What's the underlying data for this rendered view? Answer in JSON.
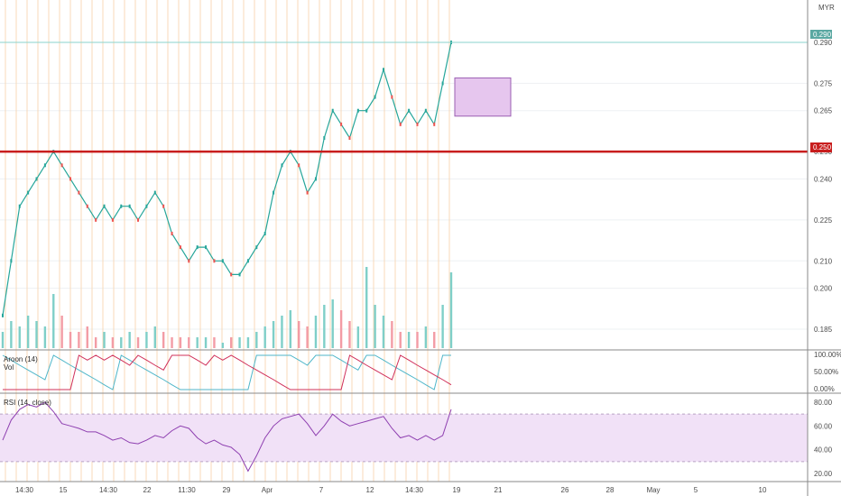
{
  "chart_data": {
    "type": "line",
    "title": "",
    "currency": "MYR",
    "grid": true,
    "x_ticks": [
      "14:30",
      "15",
      "14:30",
      "22",
      "11:30",
      "29",
      "Apr",
      "7",
      "12",
      "14:30",
      "19",
      "21",
      "26",
      "28",
      "May",
      "5",
      "10"
    ],
    "price_panel": {
      "y_ticks": [
        "0.290",
        "0.275",
        "0.265",
        "0.250",
        "0.240",
        "0.225",
        "0.210",
        "0.200",
        "0.185"
      ],
      "last_price_label": "0.290",
      "horizontal_level_label": "0.250",
      "last_price": 0.29,
      "horizontal_level": 0.25,
      "price": [
        0.19,
        0.21,
        0.23,
        0.235,
        0.24,
        0.245,
        0.25,
        0.245,
        0.24,
        0.235,
        0.23,
        0.225,
        0.23,
        0.225,
        0.23,
        0.23,
        0.225,
        0.23,
        0.235,
        0.23,
        0.22,
        0.215,
        0.21,
        0.215,
        0.215,
        0.21,
        0.21,
        0.205,
        0.205,
        0.21,
        0.215,
        0.22,
        0.235,
        0.245,
        0.25,
        0.245,
        0.235,
        0.24,
        0.255,
        0.265,
        0.26,
        0.255,
        0.265,
        0.265,
        0.27,
        0.28,
        0.27,
        0.26,
        0.265,
        0.26,
        0.265,
        0.26,
        0.275,
        0.29
      ],
      "volume": [
        0.3,
        0.5,
        0.4,
        0.6,
        0.5,
        0.4,
        1.0,
        0.6,
        0.3,
        0.3,
        0.4,
        0.2,
        0.3,
        0.2,
        0.2,
        0.3,
        0.2,
        0.3,
        0.4,
        0.3,
        0.2,
        0.2,
        0.2,
        0.2,
        0.2,
        0.2,
        0.1,
        0.2,
        0.2,
        0.2,
        0.3,
        0.4,
        0.5,
        0.6,
        0.7,
        0.5,
        0.4,
        0.6,
        0.8,
        0.9,
        0.7,
        0.5,
        0.4,
        1.5,
        0.8,
        0.6,
        0.5,
        0.3,
        0.3,
        0.3,
        0.4,
        0.3,
        0.8,
        1.4
      ]
    },
    "aroon_panel": {
      "label": "Aroon (14)",
      "sub_label": "Vol",
      "y_ticks": [
        "100.00%",
        "50.00%",
        "0.00%"
      ],
      "aroon_up": [
        100,
        86,
        71,
        57,
        43,
        29,
        100,
        86,
        71,
        57,
        43,
        29,
        14,
        0,
        100,
        86,
        71,
        57,
        43,
        29,
        14,
        0,
        0,
        0,
        0,
        0,
        0,
        0,
        0,
        0,
        100,
        100,
        100,
        100,
        100,
        86,
        71,
        100,
        100,
        100,
        86,
        71,
        57,
        100,
        100,
        86,
        71,
        57,
        43,
        29,
        14,
        0,
        100,
        100
      ],
      "aroon_down": [
        0,
        0,
        0,
        0,
        0,
        0,
        0,
        0,
        0,
        100,
        86,
        100,
        86,
        100,
        86,
        71,
        100,
        86,
        71,
        57,
        100,
        100,
        100,
        86,
        71,
        100,
        86,
        100,
        86,
        71,
        57,
        43,
        29,
        14,
        0,
        0,
        0,
        0,
        0,
        0,
        0,
        100,
        86,
        71,
        57,
        43,
        29,
        100,
        86,
        71,
        57,
        43,
        29,
        14
      ]
    },
    "rsi_panel": {
      "label": "RSI (14, close)",
      "y_ticks": [
        "80.00",
        "60.00",
        "40.00",
        "20.00"
      ],
      "band": [
        30,
        70
      ],
      "rsi": [
        48,
        65,
        74,
        78,
        76,
        80,
        72,
        62,
        60,
        58,
        55,
        55,
        52,
        48,
        50,
        46,
        45,
        48,
        52,
        50,
        56,
        60,
        58,
        50,
        45,
        48,
        44,
        42,
        36,
        22,
        35,
        50,
        60,
        66,
        68,
        70,
        62,
        52,
        60,
        70,
        64,
        60,
        62,
        64,
        66,
        68,
        58,
        50,
        52,
        48,
        52,
        48,
        52,
        74
      ]
    },
    "annotation_box": {
      "x": [
        0.5,
        0.57
      ],
      "y": [
        0.263,
        0.277
      ]
    }
  }
}
